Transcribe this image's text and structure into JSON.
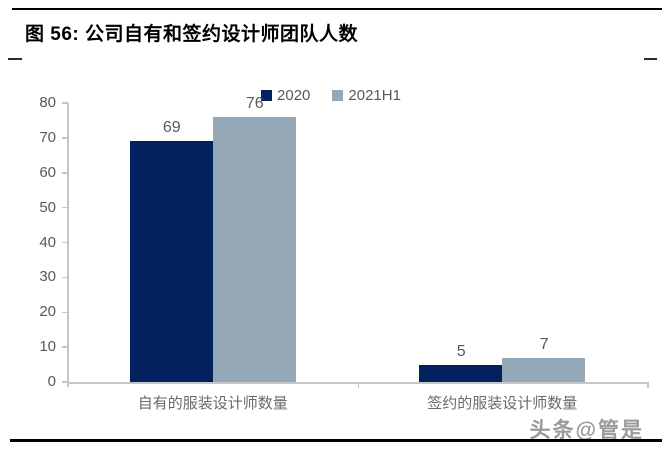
{
  "title": "图 56:  公司自有和签约设计师团队人数",
  "watermark": "头条@管是",
  "chart_data": {
    "type": "bar",
    "title": "公司自有和签约设计师团队人数",
    "categories": [
      "自有的服装设计师数量",
      "签约的服装设计师数量"
    ],
    "series": [
      {
        "name": "2020",
        "color": "#02225f",
        "values": [
          69,
          5
        ]
      },
      {
        "name": "2021H1",
        "color": "#95a8b8",
        "values": [
          76,
          7
        ]
      }
    ],
    "xlabel": "",
    "ylabel": "",
    "ylim": [
      0,
      80
    ],
    "yticks": [
      0,
      10,
      20,
      30,
      40,
      50,
      60,
      70,
      80
    ],
    "grid": false,
    "legend_position": "top",
    "axis_color": "#c6c6c6",
    "label_color": "#595959"
  }
}
